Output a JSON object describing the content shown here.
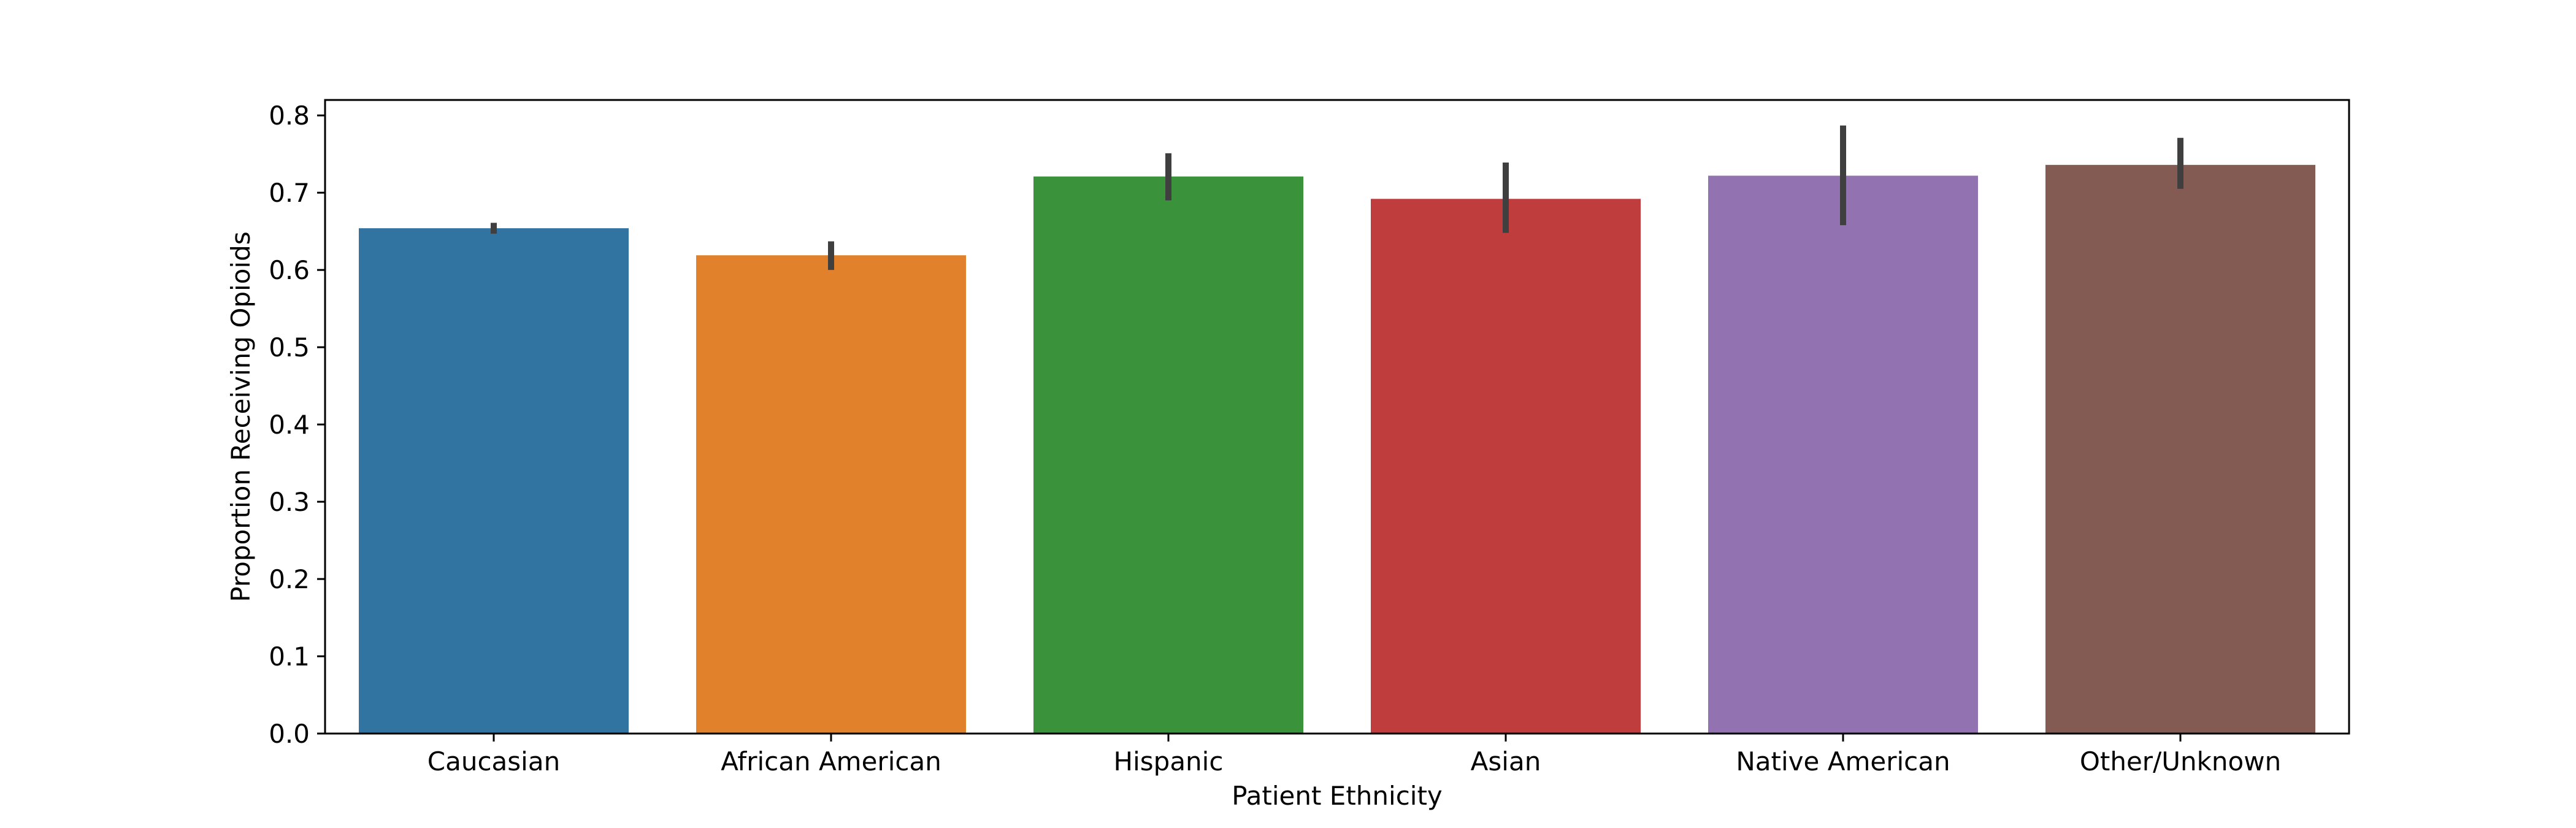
{
  "chart_data": {
    "type": "bar",
    "title": "",
    "xlabel": "Patient Ethnicity",
    "ylabel": "Proportion Receiving Opioids",
    "ylim": [
      0,
      0.82
    ],
    "yticks": [
      0.0,
      0.1,
      0.2,
      0.3,
      0.4,
      0.5,
      0.6,
      0.7,
      0.8
    ],
    "ytick_labels": [
      "0.0",
      "0.1",
      "0.2",
      "0.3",
      "0.4",
      "0.5",
      "0.6",
      "0.7",
      "0.8"
    ],
    "categories": [
      "Caucasian",
      "African American",
      "Hispanic",
      "Asian",
      "Native American",
      "Other/Unknown"
    ],
    "values": [
      0.654,
      0.619,
      0.721,
      0.692,
      0.722,
      0.736
    ],
    "error_low": [
      0.647,
      0.6,
      0.69,
      0.648,
      0.658,
      0.705
    ],
    "error_high": [
      0.661,
      0.637,
      0.751,
      0.739,
      0.787,
      0.771
    ],
    "colors": [
      "#3274a1",
      "#e1812c",
      "#3a923a",
      "#c03d3e",
      "#9372b2",
      "#845b53"
    ],
    "error_color": "#3f3f3f",
    "grid": false,
    "legend": "none"
  }
}
